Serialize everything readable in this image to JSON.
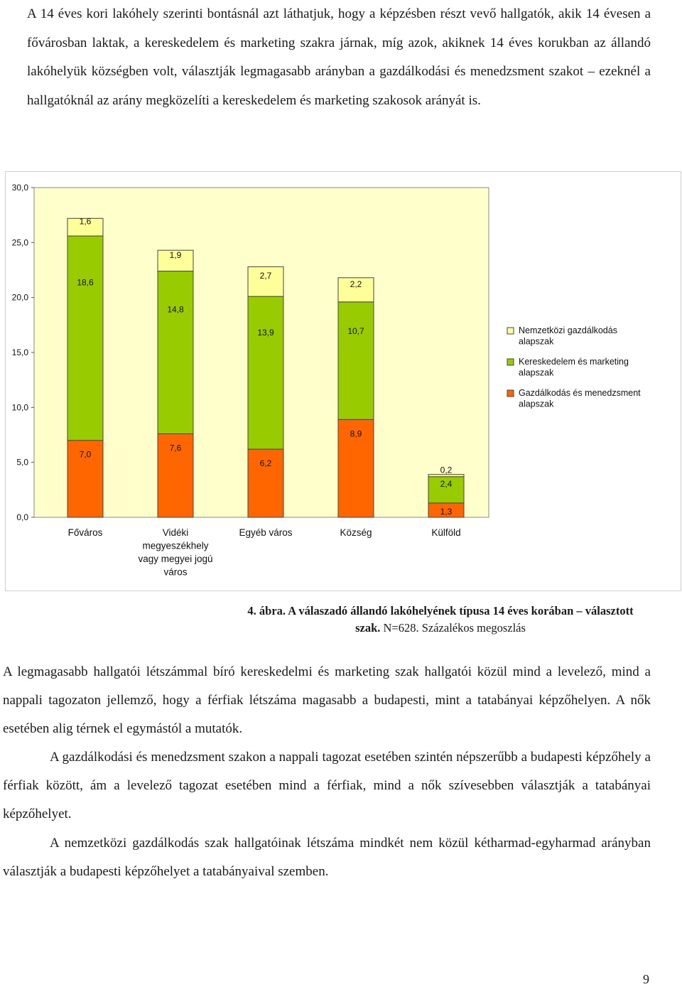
{
  "intro_paragraph": "A 14 éves kori lakóhely szerinti bontásnál azt láthatjuk, hogy a képzésben részt vevő hallgatók, akik 14 évesen a fővárosban laktak, a kereskedelem és marketing szakra járnak, míg azok, akiknek 14 éves korukban az állandó lakóhelyük községben volt, választják legmagasabb arányban a gazdálkodási és menedzsment szakot – ezeknél a hallgatóknál az arány megközelíti a kereskedelem és marketing szakosok arányát is.",
  "chart_data": {
    "type": "bar",
    "stacked": true,
    "categories": [
      "Főváros",
      "Vidéki megyeszékhely vagy megyei jogú város",
      "Egyéb város",
      "Község",
      "Külföld"
    ],
    "series": [
      {
        "name": "Gazdálkodás és menedzsment alapszak",
        "values": [
          7.0,
          7.6,
          6.2,
          8.9,
          1.3
        ],
        "labels": [
          "7,0",
          "7,6",
          "6,2",
          "8,9",
          "1,3"
        ],
        "color": "#ff6600"
      },
      {
        "name": "Kereskedelem és marketing alapszak",
        "values": [
          18.6,
          14.8,
          13.9,
          10.7,
          2.4
        ],
        "labels": [
          "18,6",
          "14,8",
          "13,9",
          "10,7",
          "2,4"
        ],
        "color": "#99cc00"
      },
      {
        "name": "Nemzetközi gazdálkodás alapszak",
        "values": [
          1.6,
          1.9,
          2.7,
          2.2,
          0.2
        ],
        "labels": [
          "1,6",
          "1,9",
          "2,7",
          "2,2",
          "0,2"
        ],
        "color": "#ffff99"
      }
    ],
    "legend_order": [
      2,
      1,
      0
    ],
    "yticks": [
      "0,0",
      "5,0",
      "10,0",
      "15,0",
      "20,0",
      "25,0",
      "30,0"
    ],
    "ylim": [
      0,
      30
    ],
    "plot_background": "#ffffcc",
    "grid": false,
    "legend_position": "right"
  },
  "caption": {
    "bold": "4. ábra. A válaszadó állandó lakóhelyének típusa 14 éves korában – választott szak.",
    "normal": " N=628. Százalékos megoszlás"
  },
  "paragraph_1": "A legmagasabb hallgatói létszámmal bíró kereskedelmi és marketing szak hallgatói közül mind a levelező, mind a nappali tagozaton jellemző, hogy a férfiak létszáma magasabb a budapesti, mint a tatabányai képzőhelyen. A nők esetében alig térnek el egymástól a mutatók.",
  "paragraph_2": "A gazdálkodási és menedzsment szakon a nappali tagozat esetében szintén népszerűbb a budapesti képzőhely a férfiak között, ám a levelező tagozat esetében mind a férfiak, mind a nők szívesebben választják a tatabányai képzőhelyet.",
  "paragraph_3": "A nemzetközi gazdálkodás szak hallgatóinak létszáma mindkét nem közül kétharmad-egyharmad arányban választják a budapesti képzőhelyet a tatabányaival szemben.",
  "page_number": "9"
}
